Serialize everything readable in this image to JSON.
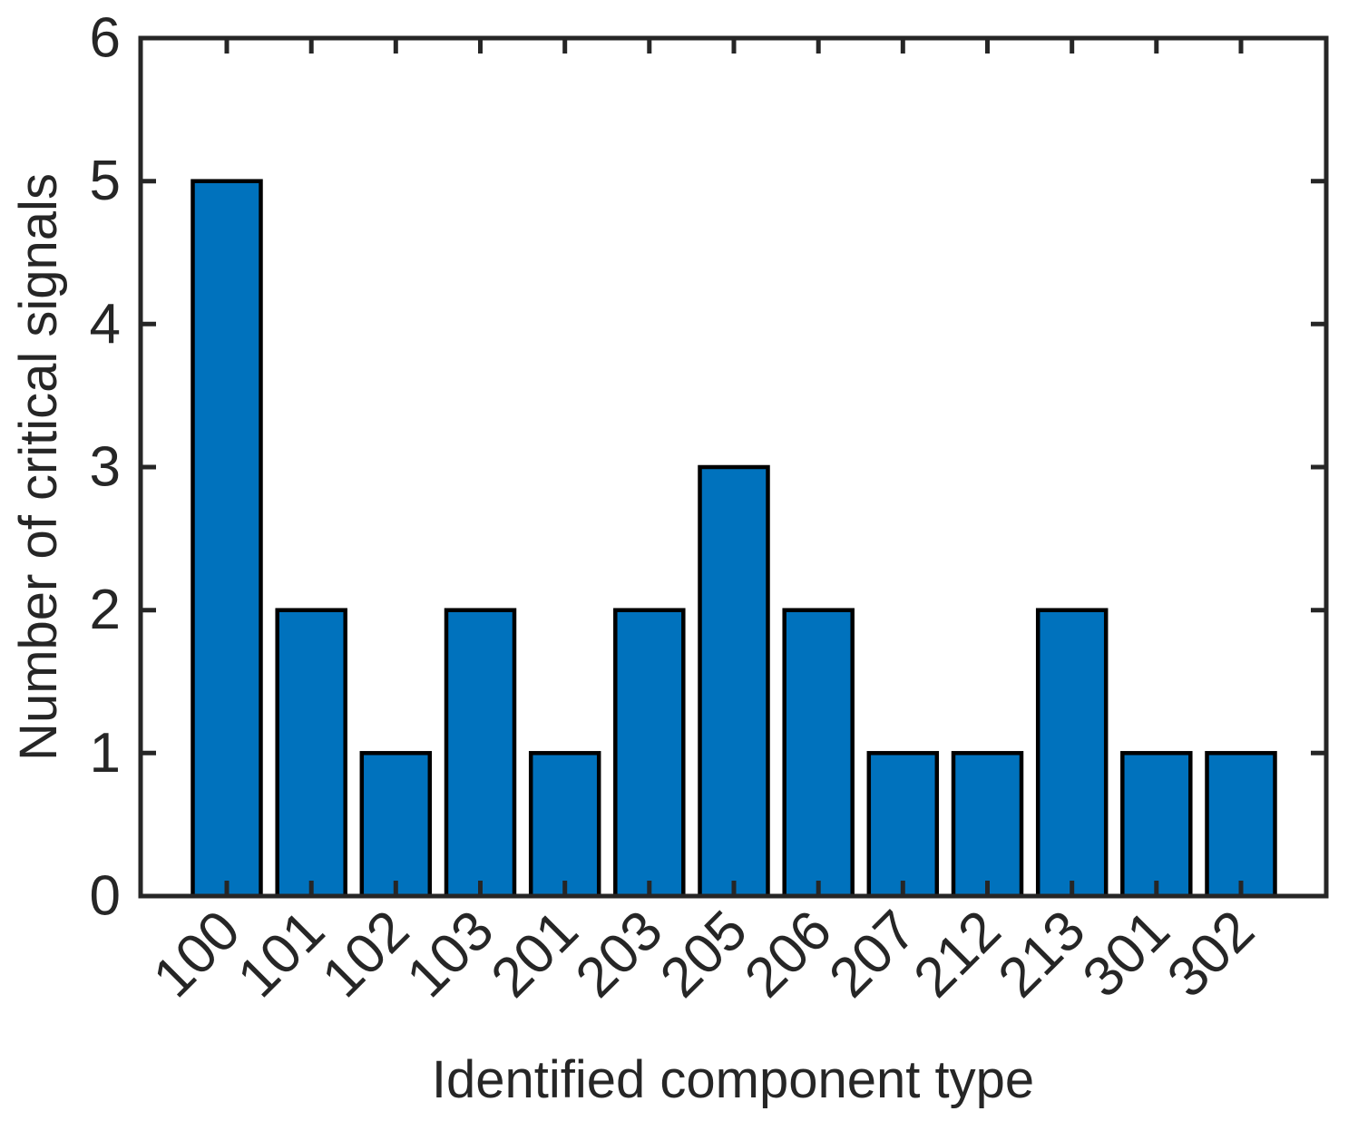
{
  "chart_data": {
    "type": "bar",
    "categories": [
      "100",
      "101",
      "102",
      "103",
      "201",
      "203",
      "205",
      "206",
      "207",
      "212",
      "213",
      "301",
      "302"
    ],
    "values": [
      5,
      2,
      1,
      2,
      1,
      2,
      3,
      2,
      1,
      1,
      2,
      1,
      1
    ],
    "title": "",
    "xlabel": "Identified component type",
    "ylabel": "Number of critical signals",
    "ylim": [
      0,
      6
    ],
    "yticks": [
      0,
      1,
      2,
      3,
      4,
      5,
      6
    ],
    "grid": false,
    "legend": null,
    "bar_color": "#0072BD",
    "bar_edge_color": "#000000",
    "axis_color": "#262626",
    "tick_label_rotation_deg": 45
  }
}
